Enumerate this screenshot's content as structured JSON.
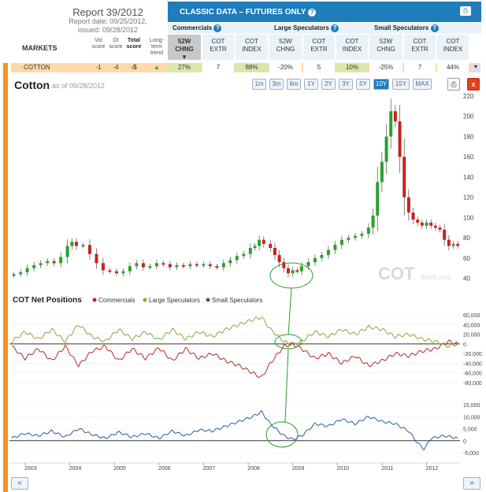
{
  "header": {
    "report_title": "Report 39/2012",
    "report_date": "Report date: 09/25/2012,",
    "issued": "issued: 09/28/2012",
    "markets_label": "MARKETS",
    "vol_score": "Vol score",
    "oi_score": "OI score",
    "total_score": "Total score",
    "long_term_trend": "Long-term trend",
    "classic_data": "CLASSIC DATA – FUTURES ONLY",
    "groups": [
      "Commercials",
      "Large Speculators",
      "Small Speculators"
    ],
    "subcols": [
      "52W CHNG",
      "COT EXTR",
      "COT INDEX"
    ]
  },
  "row": {
    "market": "COTTON",
    "vol": "-1",
    "oi": "-4",
    "total": "-5",
    "trend_icon": "up-arrow-icon",
    "values": [
      "27%",
      "7",
      "88%",
      "-20%",
      "5",
      "10%",
      "-25%",
      "7",
      "44%"
    ]
  },
  "chart_title": "Cotton",
  "as_of": "as of 09/28/2012",
  "ranges": [
    "1m",
    "3m",
    "6m",
    "1Y",
    "2Y",
    "3Y",
    "5Y",
    "10Y",
    "15Y",
    "MAX"
  ],
  "active_range": "10Y",
  "watermark": "COT",
  "watermark_small": "BASE.com",
  "nav": {
    "prev": "«",
    "next": "»"
  },
  "colors": {
    "commercials": "#b22a2a",
    "large": "#8aa83a",
    "small": "#2c5a9e",
    "up": "#2e9e2e",
    "down": "#cc2020",
    "accent": "#1e7dba"
  },
  "chart_data": [
    {
      "type": "candlestick",
      "ylim": [
        35,
        220
      ],
      "yticks": [
        40,
        60,
        80,
        100,
        120,
        140,
        160,
        180,
        200,
        220
      ],
      "price": [
        [
          2002.75,
          44
        ],
        [
          2002.9,
          46
        ],
        [
          2003.05,
          50
        ],
        [
          2003.2,
          53
        ],
        [
          2003.35,
          55
        ],
        [
          2003.5,
          57
        ],
        [
          2003.65,
          55
        ],
        [
          2003.8,
          61
        ],
        [
          2003.95,
          72
        ],
        [
          2004.05,
          76
        ],
        [
          2004.15,
          72
        ],
        [
          2004.3,
          73
        ],
        [
          2004.45,
          64
        ],
        [
          2004.6,
          55
        ],
        [
          2004.75,
          48
        ],
        [
          2004.9,
          47
        ],
        [
          2005.05,
          45
        ],
        [
          2005.2,
          47
        ],
        [
          2005.35,
          52
        ],
        [
          2005.5,
          55
        ],
        [
          2005.65,
          51
        ],
        [
          2005.8,
          52
        ],
        [
          2005.95,
          55
        ],
        [
          2006.1,
          54
        ],
        [
          2006.25,
          51
        ],
        [
          2006.4,
          53
        ],
        [
          2006.55,
          52
        ],
        [
          2006.7,
          54
        ],
        [
          2006.85,
          53
        ],
        [
          2007.0,
          54
        ],
        [
          2007.15,
          52
        ],
        [
          2007.3,
          51
        ],
        [
          2007.45,
          55
        ],
        [
          2007.6,
          58
        ],
        [
          2007.75,
          62
        ],
        [
          2007.9,
          64
        ],
        [
          2008.05,
          70
        ],
        [
          2008.15,
          72
        ],
        [
          2008.25,
          78
        ],
        [
          2008.35,
          74
        ],
        [
          2008.5,
          70
        ],
        [
          2008.6,
          63
        ],
        [
          2008.7,
          56
        ],
        [
          2008.8,
          50
        ],
        [
          2008.9,
          45
        ],
        [
          2009.0,
          48
        ],
        [
          2009.1,
          47
        ],
        [
          2009.2,
          52
        ],
        [
          2009.35,
          56
        ],
        [
          2009.5,
          60
        ],
        [
          2009.65,
          63
        ],
        [
          2009.8,
          68
        ],
        [
          2009.95,
          73
        ],
        [
          2010.1,
          78
        ],
        [
          2010.25,
          80
        ],
        [
          2010.4,
          82
        ],
        [
          2010.55,
          84
        ],
        [
          2010.7,
          90
        ],
        [
          2010.8,
          102
        ],
        [
          2010.9,
          135
        ],
        [
          2011.0,
          155
        ],
        [
          2011.1,
          180
        ],
        [
          2011.2,
          205
        ],
        [
          2011.3,
          195
        ],
        [
          2011.4,
          160
        ],
        [
          2011.5,
          120
        ],
        [
          2011.6,
          105
        ],
        [
          2011.7,
          98
        ],
        [
          2011.8,
          95
        ],
        [
          2011.9,
          92
        ],
        [
          2012.0,
          95
        ],
        [
          2012.1,
          92
        ],
        [
          2012.2,
          90
        ],
        [
          2012.3,
          88
        ],
        [
          2012.4,
          78
        ],
        [
          2012.5,
          72
        ],
        [
          2012.6,
          74
        ],
        [
          2012.7,
          72
        ]
      ]
    },
    {
      "type": "line",
      "title": "COT Net Positions",
      "ylim": [
        -80000,
        60000
      ],
      "yticks": [
        60000,
        40000,
        20000,
        0,
        -20000,
        -40000,
        -60000,
        -80000
      ],
      "series": [
        {
          "name": "Commercials",
          "values": [
            [
              2002.7,
              -5000
            ],
            [
              2003.0,
              -30000
            ],
            [
              2003.3,
              -10000
            ],
            [
              2003.6,
              -35000
            ],
            [
              2003.9,
              -5000
            ],
            [
              2004.2,
              -45000
            ],
            [
              2004.5,
              -15000
            ],
            [
              2004.8,
              -5000
            ],
            [
              2005.1,
              -35000
            ],
            [
              2005.4,
              -10000
            ],
            [
              2005.7,
              -30000
            ],
            [
              2006.0,
              -8000
            ],
            [
              2006.3,
              -35000
            ],
            [
              2006.6,
              -10000
            ],
            [
              2006.9,
              -30000
            ],
            [
              2007.2,
              -20000
            ],
            [
              2007.5,
              -35000
            ],
            [
              2007.8,
              -45000
            ],
            [
              2008.1,
              -60000
            ],
            [
              2008.3,
              -70000
            ],
            [
              2008.5,
              -40000
            ],
            [
              2008.8,
              -5000
            ],
            [
              2009.0,
              0
            ],
            [
              2009.2,
              -10000
            ],
            [
              2009.5,
              -30000
            ],
            [
              2009.8,
              -20000
            ],
            [
              2010.1,
              -40000
            ],
            [
              2010.4,
              -25000
            ],
            [
              2010.7,
              -45000
            ],
            [
              2011.0,
              -35000
            ],
            [
              2011.3,
              -20000
            ],
            [
              2011.6,
              -25000
            ],
            [
              2011.9,
              -15000
            ],
            [
              2012.2,
              -10000
            ],
            [
              2012.5,
              5000
            ],
            [
              2012.7,
              0
            ]
          ]
        },
        {
          "name": "Large Speculators",
          "values": [
            [
              2002.7,
              5000
            ],
            [
              2003.0,
              25000
            ],
            [
              2003.3,
              10000
            ],
            [
              2003.6,
              30000
            ],
            [
              2003.9,
              5000
            ],
            [
              2004.2,
              40000
            ],
            [
              2004.5,
              15000
            ],
            [
              2004.8,
              5000
            ],
            [
              2005.1,
              30000
            ],
            [
              2005.4,
              10000
            ],
            [
              2005.7,
              25000
            ],
            [
              2006.0,
              8000
            ],
            [
              2006.3,
              30000
            ],
            [
              2006.6,
              10000
            ],
            [
              2006.9,
              25000
            ],
            [
              2007.2,
              15000
            ],
            [
              2007.5,
              30000
            ],
            [
              2007.8,
              40000
            ],
            [
              2008.1,
              50000
            ],
            [
              2008.3,
              55000
            ],
            [
              2008.5,
              30000
            ],
            [
              2008.8,
              5000
            ],
            [
              2009.0,
              -2000
            ],
            [
              2009.2,
              5000
            ],
            [
              2009.5,
              25000
            ],
            [
              2009.8,
              15000
            ],
            [
              2010.1,
              30000
            ],
            [
              2010.4,
              20000
            ],
            [
              2010.7,
              35000
            ],
            [
              2011.0,
              30000
            ],
            [
              2011.3,
              15000
            ],
            [
              2011.6,
              20000
            ],
            [
              2011.9,
              10000
            ],
            [
              2012.2,
              5000
            ],
            [
              2012.5,
              -5000
            ],
            [
              2012.7,
              0
            ]
          ]
        }
      ]
    },
    {
      "type": "line",
      "ylim": [
        -5000,
        15000
      ],
      "yticks": [
        15000,
        10000,
        5000,
        0,
        -5000
      ],
      "series": [
        {
          "name": "Small Speculators",
          "values": [
            [
              2002.7,
              1000
            ],
            [
              2003.0,
              3000
            ],
            [
              2003.3,
              2000
            ],
            [
              2003.6,
              4000
            ],
            [
              2003.9,
              1500
            ],
            [
              2004.2,
              5000
            ],
            [
              2004.5,
              2500
            ],
            [
              2004.8,
              1000
            ],
            [
              2005.1,
              3500
            ],
            [
              2005.4,
              1500
            ],
            [
              2005.7,
              3000
            ],
            [
              2006.0,
              1000
            ],
            [
              2006.3,
              4000
            ],
            [
              2006.6,
              2000
            ],
            [
              2006.9,
              4500
            ],
            [
              2007.2,
              4000
            ],
            [
              2007.5,
              6000
            ],
            [
              2007.8,
              8000
            ],
            [
              2008.1,
              10000
            ],
            [
              2008.3,
              12000
            ],
            [
              2008.5,
              7000
            ],
            [
              2008.8,
              2000
            ],
            [
              2009.0,
              500
            ],
            [
              2009.2,
              2000
            ],
            [
              2009.5,
              7000
            ],
            [
              2009.8,
              6000
            ],
            [
              2010.1,
              9000
            ],
            [
              2010.4,
              7000
            ],
            [
              2010.7,
              10000
            ],
            [
              2011.0,
              8000
            ],
            [
              2011.3,
              7000
            ],
            [
              2011.6,
              4000
            ],
            [
              2011.8,
              -1000
            ],
            [
              2011.95,
              -3500
            ],
            [
              2012.1,
              1000
            ],
            [
              2012.4,
              2000
            ],
            [
              2012.7,
              1000
            ]
          ]
        }
      ]
    }
  ],
  "xaxis": {
    "years": [
      "2003",
      "2004",
      "2005",
      "2006",
      "2007",
      "2008",
      "2009",
      "2010",
      "2011",
      "2012"
    ]
  }
}
